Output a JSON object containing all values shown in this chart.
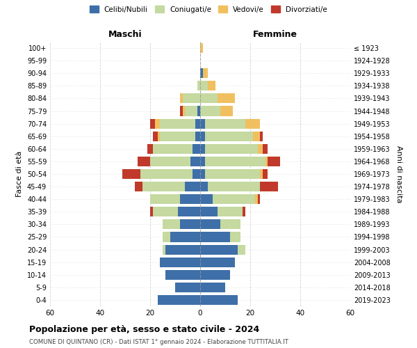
{
  "age_groups": [
    "0-4",
    "5-9",
    "10-14",
    "15-19",
    "20-24",
    "25-29",
    "30-34",
    "35-39",
    "40-44",
    "45-49",
    "50-54",
    "55-59",
    "60-64",
    "65-69",
    "70-74",
    "75-79",
    "80-84",
    "85-89",
    "90-94",
    "95-99",
    "100+"
  ],
  "birth_years": [
    "2019-2023",
    "2014-2018",
    "2009-2013",
    "2004-2008",
    "1999-2003",
    "1994-1998",
    "1989-1993",
    "1984-1988",
    "1979-1983",
    "1974-1978",
    "1969-1973",
    "1964-1968",
    "1959-1963",
    "1954-1958",
    "1949-1953",
    "1944-1948",
    "1939-1943",
    "1934-1938",
    "1929-1933",
    "1924-1928",
    "≤ 1923"
  ],
  "colors": {
    "celibi": "#3e6fa8",
    "coniugati": "#c5d9a0",
    "vedovi": "#f0c060",
    "divorziati": "#c0392b"
  },
  "maschi": {
    "celibi": [
      17,
      10,
      14,
      16,
      14,
      12,
      8,
      9,
      8,
      6,
      3,
      4,
      3,
      2,
      2,
      1,
      0,
      0,
      0,
      0,
      0
    ],
    "coniugati": [
      0,
      0,
      0,
      0,
      1,
      3,
      7,
      10,
      12,
      17,
      21,
      16,
      16,
      14,
      14,
      5,
      7,
      1,
      0,
      0,
      0
    ],
    "vedovi": [
      0,
      0,
      0,
      0,
      0,
      0,
      0,
      0,
      0,
      0,
      0,
      0,
      0,
      1,
      2,
      1,
      1,
      0,
      0,
      0,
      0
    ],
    "divorziati": [
      0,
      0,
      0,
      0,
      0,
      0,
      0,
      1,
      0,
      3,
      7,
      5,
      2,
      2,
      2,
      1,
      0,
      0,
      0,
      0,
      0
    ]
  },
  "femmine": {
    "celibi": [
      15,
      10,
      12,
      14,
      15,
      12,
      8,
      7,
      5,
      3,
      2,
      2,
      2,
      2,
      2,
      0,
      0,
      0,
      1,
      0,
      0
    ],
    "coniugati": [
      0,
      0,
      0,
      0,
      3,
      4,
      8,
      10,
      17,
      21,
      22,
      24,
      21,
      19,
      16,
      8,
      7,
      3,
      0,
      0,
      0
    ],
    "vedovi": [
      0,
      0,
      0,
      0,
      0,
      0,
      0,
      0,
      1,
      0,
      1,
      1,
      2,
      3,
      6,
      5,
      7,
      3,
      2,
      0,
      1
    ],
    "divorziati": [
      0,
      0,
      0,
      0,
      0,
      0,
      0,
      1,
      1,
      7,
      2,
      5,
      2,
      1,
      0,
      0,
      0,
      0,
      0,
      0,
      0
    ]
  },
  "title": "Popolazione per età, sesso e stato civile - 2024",
  "subtitle": "COMUNE DI QUINTANO (CR) - Dati ISTAT 1° gennaio 2024 - Elaborazione TUTTITALIA.IT",
  "xlabel_left": "Maschi",
  "xlabel_right": "Femmine",
  "ylabel_left": "Fasce di età",
  "ylabel_right": "Anni di nascita",
  "xlim": 60,
  "legend_labels": [
    "Celibi/Nubili",
    "Coniugati/e",
    "Vedovi/e",
    "Divorziati/e"
  ],
  "background_color": "#ffffff",
  "grid_color": "#cccccc"
}
